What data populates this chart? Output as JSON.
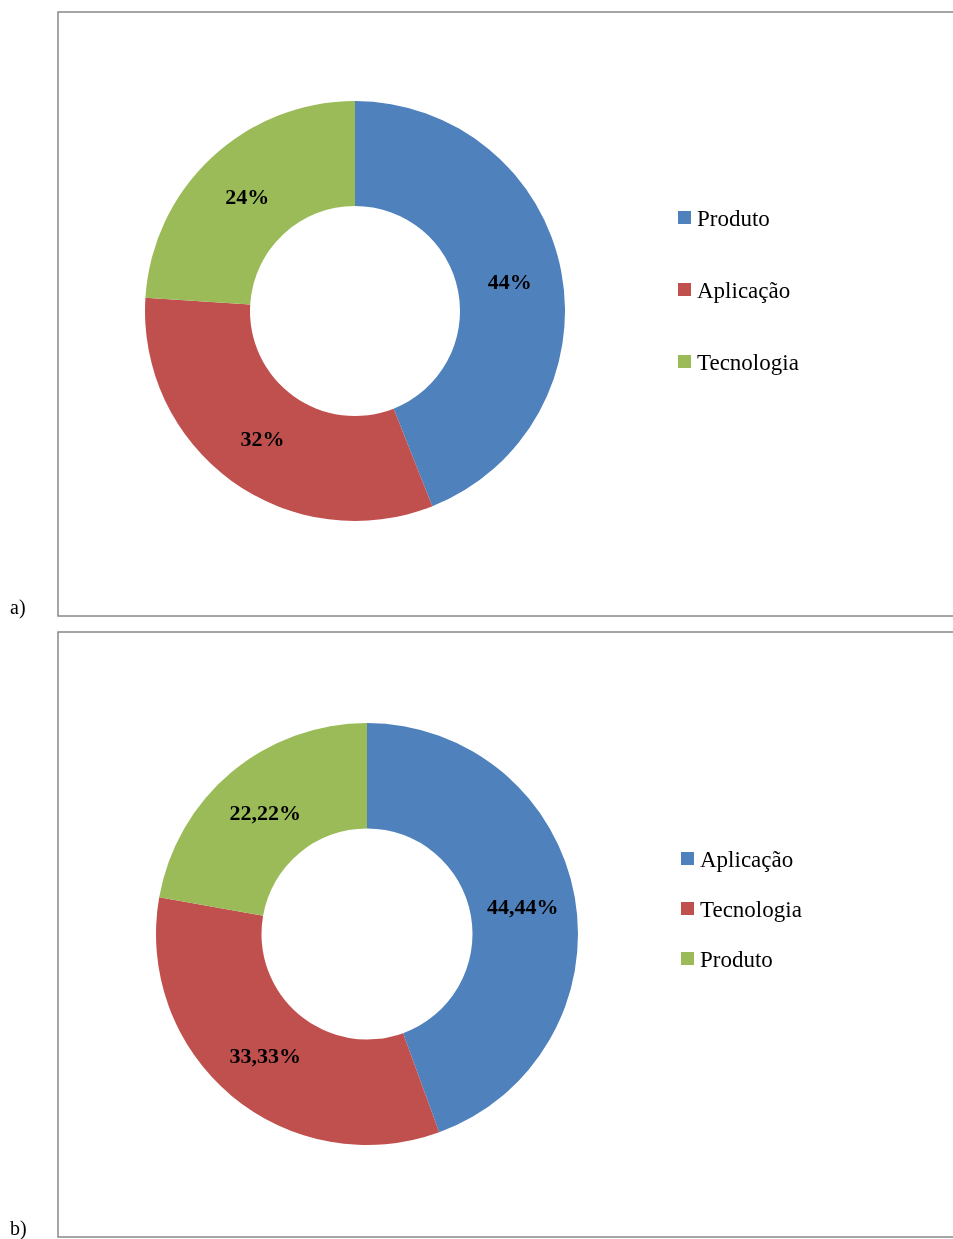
{
  "chart_data": [
    {
      "type": "donut",
      "categories": [
        "Produto",
        "Aplicação",
        "Tecnologia"
      ],
      "values": [
        44,
        32,
        24
      ],
      "colors": [
        "#4f81bd",
        "#c0504d",
        "#9bbb59"
      ],
      "value_labels": [
        "44%",
        "32%",
        "24%"
      ],
      "legend": "right",
      "annotations": [
        "a)"
      ]
    },
    {
      "type": "donut",
      "categories": [
        "Aplicação",
        "Tecnologia",
        "Produto"
      ],
      "values": [
        44.44,
        33.33,
        22.22
      ],
      "colors": [
        "#4f81bd",
        "#c0504d",
        "#9bbb59"
      ],
      "value_labels": [
        "44,44%",
        "33,33%",
        "22,22%"
      ],
      "legend": "right",
      "annotations": [
        "b)"
      ]
    }
  ]
}
